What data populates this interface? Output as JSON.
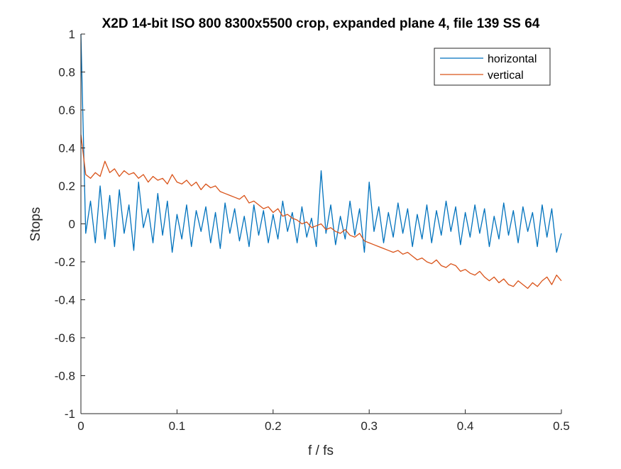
{
  "chart_data": {
    "type": "line",
    "title": "X2D 14-bit ISO 800 8300x5500 crop, expanded plane 4, file 139 SS 64",
    "xlabel": "f / fs",
    "ylabel": "Stops",
    "xlim": [
      0,
      0.5
    ],
    "ylim": [
      -1,
      1
    ],
    "x_ticks": [
      0,
      0.1,
      0.2,
      0.3,
      0.4,
      0.5
    ],
    "x_tick_labels": [
      "0",
      "0.1",
      "0.2",
      "0.3",
      "0.4",
      "0.5"
    ],
    "y_ticks": [
      -1,
      -0.8,
      -0.6,
      -0.4,
      -0.2,
      0,
      0.2,
      0.4,
      0.6,
      0.8,
      1
    ],
    "y_tick_labels": [
      "-1",
      "-0.8",
      "-0.6",
      "-0.4",
      "-0.2",
      "0",
      "0.2",
      "0.4",
      "0.6",
      "0.8",
      "1"
    ],
    "grid": false,
    "legend_position": "top-right",
    "series": [
      {
        "name": "horizontal",
        "color": "#0072BD",
        "x": [
          0,
          0.005,
          0.01,
          0.015,
          0.02,
          0.025,
          0.03,
          0.035,
          0.04,
          0.045,
          0.05,
          0.055,
          0.06,
          0.065,
          0.07,
          0.075,
          0.08,
          0.085,
          0.09,
          0.095,
          0.1,
          0.105,
          0.11,
          0.115,
          0.12,
          0.125,
          0.13,
          0.135,
          0.14,
          0.145,
          0.15,
          0.155,
          0.16,
          0.165,
          0.17,
          0.175,
          0.18,
          0.185,
          0.19,
          0.195,
          0.2,
          0.205,
          0.21,
          0.215,
          0.22,
          0.225,
          0.23,
          0.235,
          0.24,
          0.245,
          0.25,
          0.255,
          0.26,
          0.265,
          0.27,
          0.275,
          0.28,
          0.285,
          0.29,
          0.295,
          0.3,
          0.305,
          0.31,
          0.315,
          0.32,
          0.325,
          0.33,
          0.335,
          0.34,
          0.345,
          0.35,
          0.355,
          0.36,
          0.365,
          0.37,
          0.375,
          0.38,
          0.385,
          0.39,
          0.395,
          0.4,
          0.405,
          0.41,
          0.415,
          0.42,
          0.425,
          0.43,
          0.435,
          0.44,
          0.445,
          0.45,
          0.455,
          0.46,
          0.465,
          0.47,
          0.475,
          0.48,
          0.485,
          0.49,
          0.495,
          0.5
        ],
        "values": [
          1.0,
          -0.05,
          0.12,
          -0.1,
          0.2,
          -0.08,
          0.15,
          -0.12,
          0.18,
          -0.05,
          0.1,
          -0.14,
          0.22,
          -0.02,
          0.08,
          -0.1,
          0.16,
          -0.06,
          0.12,
          -0.15,
          0.05,
          -0.08,
          0.1,
          -0.12,
          0.07,
          -0.04,
          0.09,
          -0.1,
          0.06,
          -0.13,
          0.11,
          -0.05,
          0.08,
          -0.09,
          0.04,
          -0.12,
          0.1,
          -0.06,
          0.07,
          -0.1,
          0.05,
          -0.08,
          0.12,
          -0.04,
          0.06,
          -0.1,
          0.09,
          -0.07,
          0.03,
          -0.12,
          0.28,
          -0.05,
          0.1,
          -0.11,
          0.04,
          -0.08,
          0.12,
          -0.06,
          0.08,
          -0.15,
          0.22,
          -0.04,
          0.09,
          -0.1,
          0.06,
          -0.07,
          0.11,
          -0.05,
          0.08,
          -0.12,
          0.05,
          -0.08,
          0.1,
          -0.1,
          0.07,
          -0.06,
          0.12,
          -0.04,
          0.09,
          -0.11,
          0.06,
          -0.07,
          0.1,
          -0.05,
          0.08,
          -0.12,
          0.04,
          -0.08,
          0.11,
          -0.06,
          0.07,
          -0.1,
          0.09,
          -0.04,
          0.06,
          -0.12,
          0.1,
          -0.07,
          0.08,
          -0.15,
          -0.05
        ]
      },
      {
        "name": "vertical",
        "color": "#D95319",
        "x": [
          0,
          0.005,
          0.01,
          0.015,
          0.02,
          0.025,
          0.03,
          0.035,
          0.04,
          0.045,
          0.05,
          0.055,
          0.06,
          0.065,
          0.07,
          0.075,
          0.08,
          0.085,
          0.09,
          0.095,
          0.1,
          0.105,
          0.11,
          0.115,
          0.12,
          0.125,
          0.13,
          0.135,
          0.14,
          0.145,
          0.15,
          0.155,
          0.16,
          0.165,
          0.17,
          0.175,
          0.18,
          0.185,
          0.19,
          0.195,
          0.2,
          0.205,
          0.21,
          0.215,
          0.22,
          0.225,
          0.23,
          0.235,
          0.24,
          0.245,
          0.25,
          0.255,
          0.26,
          0.265,
          0.27,
          0.275,
          0.28,
          0.285,
          0.29,
          0.295,
          0.3,
          0.305,
          0.31,
          0.315,
          0.32,
          0.325,
          0.33,
          0.335,
          0.34,
          0.345,
          0.35,
          0.355,
          0.36,
          0.365,
          0.37,
          0.375,
          0.38,
          0.385,
          0.39,
          0.395,
          0.4,
          0.405,
          0.41,
          0.415,
          0.42,
          0.425,
          0.43,
          0.435,
          0.44,
          0.445,
          0.45,
          0.455,
          0.46,
          0.465,
          0.47,
          0.475,
          0.48,
          0.485,
          0.49,
          0.495,
          0.5
        ],
        "values": [
          0.47,
          0.26,
          0.24,
          0.27,
          0.25,
          0.33,
          0.27,
          0.29,
          0.25,
          0.28,
          0.26,
          0.27,
          0.24,
          0.26,
          0.22,
          0.25,
          0.23,
          0.24,
          0.21,
          0.26,
          0.22,
          0.21,
          0.23,
          0.2,
          0.22,
          0.18,
          0.21,
          0.19,
          0.2,
          0.17,
          0.16,
          0.15,
          0.14,
          0.13,
          0.15,
          0.11,
          0.12,
          0.1,
          0.08,
          0.09,
          0.06,
          0.08,
          0.04,
          0.05,
          0.03,
          0.02,
          0.0,
          0.01,
          -0.02,
          -0.01,
          0.0,
          -0.03,
          -0.02,
          -0.04,
          -0.05,
          -0.03,
          -0.06,
          -0.07,
          -0.05,
          -0.09,
          -0.1,
          -0.11,
          -0.12,
          -0.13,
          -0.14,
          -0.15,
          -0.14,
          -0.16,
          -0.15,
          -0.17,
          -0.19,
          -0.18,
          -0.2,
          -0.21,
          -0.19,
          -0.22,
          -0.23,
          -0.21,
          -0.22,
          -0.25,
          -0.24,
          -0.26,
          -0.27,
          -0.25,
          -0.28,
          -0.3,
          -0.28,
          -0.31,
          -0.29,
          -0.32,
          -0.33,
          -0.3,
          -0.32,
          -0.34,
          -0.31,
          -0.33,
          -0.3,
          -0.28,
          -0.32,
          -0.27,
          -0.3
        ]
      }
    ]
  }
}
